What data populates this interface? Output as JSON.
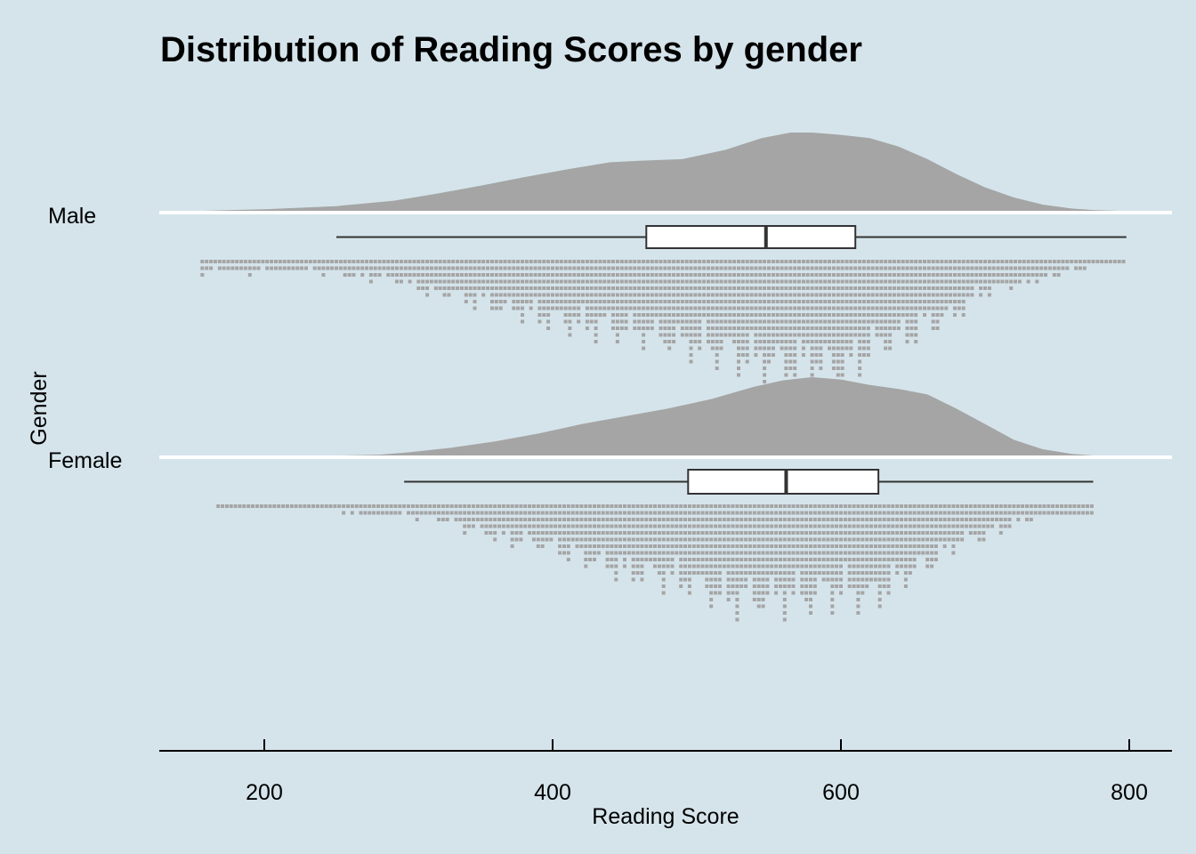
{
  "chart_data": {
    "type": "raincloud",
    "title": "Distribution of Reading Scores by gender",
    "xlabel": "Reading Score",
    "ylabel": "Gender",
    "xlim": [
      125,
      835
    ],
    "x_ticks": [
      200,
      400,
      600,
      800
    ],
    "grid": false,
    "legend": "none",
    "colors": {
      "background": "#d5e4eb",
      "density": "#a5a5a5",
      "dots": "#a5a5a5",
      "box_fill": "#ffffff",
      "box_line": "#333333",
      "baseline": "#ffffff"
    },
    "groups": [
      {
        "name": "Male",
        "box": {
          "whisker_low": 250,
          "q1": 465,
          "median": 548,
          "q3": 610,
          "whisker_high": 798
        },
        "density": {
          "x": [
            157,
            200,
            250,
            290,
            320,
            350,
            380,
            410,
            440,
            460,
            490,
            520,
            545,
            565,
            580,
            600,
            620,
            640,
            660,
            680,
            700,
            720,
            740,
            760,
            775,
            793
          ],
          "y": [
            0.0,
            0.02,
            0.06,
            0.13,
            0.22,
            0.32,
            0.43,
            0.53,
            0.62,
            0.64,
            0.66,
            0.78,
            0.93,
            1.0,
            1.0,
            0.97,
            0.93,
            0.82,
            0.66,
            0.47,
            0.3,
            0.17,
            0.08,
            0.03,
            0.01,
            0.0
          ]
        },
        "dot_profile": {
          "x": [
            157,
            200,
            240,
            280,
            320,
            360,
            400,
            430,
            460,
            480,
            500,
            520,
            540,
            560,
            580,
            600,
            620,
            640,
            660,
            680,
            700,
            720,
            740,
            760,
            780,
            797
          ],
          "count": [
            2,
            2,
            2,
            3,
            5,
            7,
            9,
            10,
            11,
            12,
            13,
            14,
            15,
            16,
            15,
            17,
            13,
            12,
            10,
            8,
            5,
            4,
            3,
            2,
            1,
            1
          ]
        }
      },
      {
        "name": "Female",
        "box": {
          "whisker_low": 297,
          "q1": 494,
          "median": 562,
          "q3": 626,
          "whisker_high": 775
        },
        "density": {
          "x": [
            253,
            280,
            300,
            330,
            360,
            390,
            420,
            450,
            480,
            510,
            540,
            560,
            580,
            600,
            620,
            640,
            660,
            680,
            700,
            720,
            740,
            760,
            775
          ],
          "y": [
            0.0,
            0.01,
            0.04,
            0.1,
            0.18,
            0.28,
            0.4,
            0.5,
            0.6,
            0.72,
            0.88,
            0.96,
            1.0,
            0.97,
            0.9,
            0.85,
            0.78,
            0.6,
            0.4,
            0.2,
            0.08,
            0.02,
            0.0
          ]
        },
        "dot_profile": {
          "x": [
            168,
            200,
            240,
            280,
            300,
            330,
            360,
            390,
            420,
            450,
            480,
            500,
            520,
            540,
            560,
            580,
            600,
            620,
            640,
            660,
            680,
            700,
            720,
            740,
            760,
            775
          ],
          "count": [
            1,
            1,
            1,
            2,
            2,
            3,
            5,
            6,
            8,
            10,
            11,
            12,
            14,
            14,
            14,
            14,
            13,
            14,
            11,
            9,
            6,
            5,
            3,
            2,
            2,
            2
          ]
        }
      }
    ]
  }
}
